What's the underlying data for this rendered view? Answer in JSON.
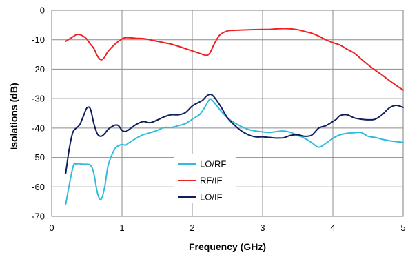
{
  "chart_data": {
    "type": "line",
    "title": "",
    "xlabel": "Frequency (GHz)",
    "ylabel": "Isolations (dB)",
    "xlim": [
      0,
      5
    ],
    "ylim": [
      -70,
      0
    ],
    "xticks": [
      "0",
      "1",
      "2",
      "3",
      "4",
      "5"
    ],
    "yticks": [
      "0",
      "-10",
      "-20",
      "-30",
      "-40",
      "-50",
      "-60",
      "-70"
    ],
    "grid": true,
    "legend_position": "lower-center",
    "series": [
      {
        "name": "LO/RF",
        "color": "#33bbdd",
        "x": [
          0.2,
          0.3,
          0.35,
          0.45,
          0.55,
          0.6,
          0.65,
          0.7,
          0.75,
          0.8,
          0.85,
          0.9,
          0.95,
          1.0,
          1.05,
          1.1,
          1.2,
          1.3,
          1.4,
          1.5,
          1.6,
          1.7,
          1.8,
          1.9,
          2.0,
          2.1,
          2.15,
          2.2,
          2.25,
          2.3,
          2.4,
          2.5,
          2.6,
          2.7,
          2.8,
          2.9,
          3.0,
          3.1,
          3.2,
          3.3,
          3.4,
          3.5,
          3.6,
          3.7,
          3.8,
          3.9,
          4.0,
          4.1,
          4.2,
          4.3,
          4.4,
          4.5,
          4.6,
          4.7,
          4.8,
          4.9,
          5.0
        ],
        "y": [
          -65.8,
          -53.5,
          -52.2,
          -52.3,
          -52.6,
          -55.5,
          -62.0,
          -64.3,
          -60.5,
          -53.0,
          -49.5,
          -47.0,
          -46.0,
          -45.6,
          -45.8,
          -45.0,
          -43.5,
          -42.3,
          -41.6,
          -40.8,
          -39.8,
          -39.8,
          -39.2,
          -38.5,
          -37.0,
          -35.5,
          -34.0,
          -32.0,
          -30.2,
          -31.0,
          -34.0,
          -36.5,
          -38.2,
          -39.5,
          -40.5,
          -41.0,
          -41.3,
          -41.5,
          -41.2,
          -41.0,
          -41.5,
          -42.5,
          -43.5,
          -45.0,
          -46.5,
          -45.2,
          -43.5,
          -42.3,
          -41.8,
          -41.6,
          -41.5,
          -42.8,
          -43.2,
          -43.8,
          -44.3,
          -44.6,
          -44.9
        ]
      },
      {
        "name": "RF/IF",
        "color": "#ee2222",
        "x": [
          0.2,
          0.3,
          0.35,
          0.4,
          0.45,
          0.5,
          0.55,
          0.6,
          0.65,
          0.7,
          0.75,
          0.8,
          0.9,
          1.0,
          1.05,
          1.1,
          1.2,
          1.3,
          1.4,
          1.5,
          1.6,
          1.7,
          1.8,
          1.9,
          2.0,
          2.1,
          2.2,
          2.25,
          2.3,
          2.35,
          2.4,
          2.5,
          2.6,
          2.8,
          3.0,
          3.1,
          3.2,
          3.3,
          3.4,
          3.5,
          3.6,
          3.7,
          3.8,
          3.9,
          4.0,
          4.1,
          4.2,
          4.3,
          4.4,
          4.5,
          4.6,
          4.7,
          4.8,
          4.9,
          5.0
        ],
        "y": [
          -10.5,
          -9.0,
          -8.3,
          -8.3,
          -8.8,
          -9.8,
          -11.5,
          -13.0,
          -15.5,
          -16.8,
          -16.0,
          -14.0,
          -11.5,
          -9.7,
          -9.3,
          -9.3,
          -9.5,
          -9.6,
          -10.0,
          -10.5,
          -11.0,
          -11.5,
          -12.2,
          -13.0,
          -13.8,
          -14.6,
          -15.3,
          -14.5,
          -12.0,
          -9.8,
          -8.2,
          -7.0,
          -6.8,
          -6.6,
          -6.5,
          -6.5,
          -6.3,
          -6.2,
          -6.3,
          -6.6,
          -7.2,
          -7.8,
          -8.8,
          -10.0,
          -11.0,
          -11.8,
          -13.2,
          -14.5,
          -16.5,
          -18.5,
          -20.3,
          -22.0,
          -23.8,
          -25.5,
          -27.1
        ]
      },
      {
        "name": "LO/IF",
        "color": "#0f1f5e",
        "x": [
          0.2,
          0.25,
          0.3,
          0.35,
          0.4,
          0.45,
          0.5,
          0.55,
          0.6,
          0.65,
          0.7,
          0.75,
          0.8,
          0.85,
          0.9,
          0.95,
          1.0,
          1.05,
          1.1,
          1.2,
          1.3,
          1.4,
          1.5,
          1.6,
          1.7,
          1.8,
          1.9,
          2.0,
          2.1,
          2.15,
          2.2,
          2.25,
          2.3,
          2.4,
          2.5,
          2.6,
          2.7,
          2.8,
          2.9,
          3.0,
          3.1,
          3.2,
          3.3,
          3.4,
          3.5,
          3.6,
          3.7,
          3.8,
          3.9,
          4.0,
          4.05,
          4.1,
          4.2,
          4.3,
          4.4,
          4.5,
          4.6,
          4.7,
          4.8,
          4.9,
          5.0
        ],
        "y": [
          -55.3,
          -47.0,
          -41.5,
          -40.0,
          -38.8,
          -36.0,
          -33.2,
          -33.5,
          -38.5,
          -42.0,
          -42.8,
          -42.0,
          -40.5,
          -39.6,
          -39.0,
          -39.2,
          -40.8,
          -41.2,
          -40.5,
          -38.8,
          -37.8,
          -38.2,
          -37.3,
          -36.2,
          -35.5,
          -35.5,
          -34.8,
          -32.5,
          -31.2,
          -30.5,
          -29.2,
          -28.6,
          -29.2,
          -32.5,
          -36.5,
          -39.0,
          -41.0,
          -42.3,
          -43.0,
          -43.0,
          -43.2,
          -43.4,
          -43.3,
          -42.5,
          -42.3,
          -42.8,
          -42.4,
          -40.0,
          -39.2,
          -37.8,
          -37.0,
          -35.8,
          -35.5,
          -36.5,
          -37.0,
          -37.2,
          -37.0,
          -35.5,
          -33.2,
          -32.3,
          -33.0
        ]
      }
    ]
  }
}
